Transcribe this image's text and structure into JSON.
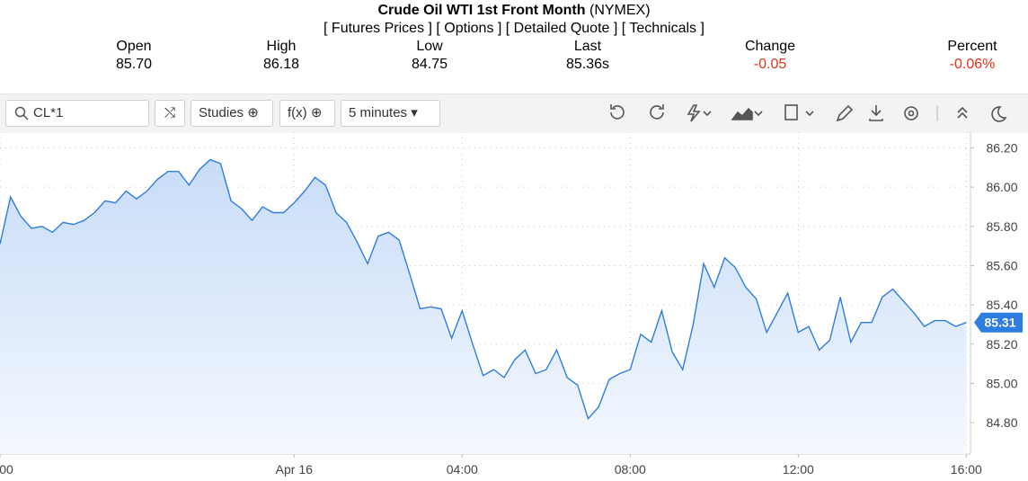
{
  "header": {
    "title": "Crude Oil WTI 1st Front Month",
    "exchange": "(NYMEX)",
    "links": [
      "[ Futures Prices ]",
      "[ Options ]",
      "[ Detailed Quote ]",
      "[ Technicals ]"
    ]
  },
  "quote": [
    {
      "label": "Open",
      "value": "85.70"
    },
    {
      "label": "High",
      "value": "86.18"
    },
    {
      "label": "Low",
      "value": "84.75"
    },
    {
      "label": "Last",
      "value": "85.36s"
    },
    {
      "label": "Change",
      "value": "-0.05"
    },
    {
      "label": "Percent",
      "value": "-0.06%"
    }
  ],
  "toolbar": {
    "symbol": "CL*1",
    "studies": "Studies",
    "fx": "f(x)",
    "interval": "5 minutes"
  },
  "chart_data": {
    "type": "area",
    "x": [
      -7,
      -6.75,
      -6.5,
      -6.25,
      -6,
      -5.75,
      -5.5,
      -5.25,
      -5,
      -4.75,
      -4.5,
      -4.25,
      -4,
      -3.75,
      -3.5,
      -3.25,
      -3,
      -2.75,
      -2.5,
      -2.25,
      -2,
      -1.75,
      -1.5,
      -1.25,
      -1,
      -0.75,
      -0.5,
      -0.25,
      0,
      0.25,
      0.5,
      0.75,
      1,
      1.25,
      1.5,
      1.75,
      2,
      2.25,
      2.5,
      2.75,
      3,
      3.25,
      3.5,
      3.75,
      4,
      4.25,
      4.5,
      4.75,
      5,
      5.25,
      5.5,
      5.75,
      6,
      6.25,
      6.5,
      6.75,
      7,
      7.25,
      7.5,
      7.75,
      8,
      8.25,
      8.5,
      8.75,
      9,
      9.25,
      9.5,
      9.75,
      10,
      10.25,
      10.5,
      10.75,
      11,
      11.25,
      11.5,
      11.75,
      12,
      12.25,
      12.5,
      12.75,
      13,
      13.25,
      13.5,
      13.75,
      14,
      14.25,
      14.5,
      14.75,
      15,
      15.25,
      15.5,
      15.75,
      16
    ],
    "values": [
      85.71,
      85.95,
      85.85,
      85.79,
      85.8,
      85.77,
      85.82,
      85.81,
      85.83,
      85.87,
      85.93,
      85.92,
      85.98,
      85.94,
      85.98,
      86.04,
      86.08,
      86.08,
      86.01,
      86.09,
      86.14,
      86.12,
      85.93,
      85.89,
      85.83,
      85.9,
      85.87,
      85.87,
      85.92,
      85.98,
      86.05,
      86.01,
      85.87,
      85.82,
      85.72,
      85.61,
      85.75,
      85.77,
      85.73,
      85.56,
      85.38,
      85.39,
      85.38,
      85.23,
      85.37,
      85.2,
      85.04,
      85.07,
      85.03,
      85.12,
      85.17,
      85.05,
      85.07,
      85.17,
      85.03,
      84.99,
      84.82,
      84.88,
      85.02,
      85.05,
      85.07,
      85.25,
      85.21,
      85.37,
      85.16,
      85.07,
      85.3,
      85.61,
      85.49,
      85.64,
      85.59,
      85.49,
      85.43,
      85.26,
      85.36,
      85.46,
      85.26,
      85.29,
      85.17,
      85.22,
      85.44,
      85.21,
      85.31,
      85.31,
      85.44,
      85.48,
      85.42,
      85.36,
      85.29,
      85.32,
      85.32,
      85.29,
      85.31
    ],
    "color": "#2e7de0",
    "last_value": 85.31,
    "xlim": [
      -7,
      16.1
    ],
    "xticks": [
      {
        "value": -7,
        "label": "00"
      },
      {
        "value": 0,
        "label": "Apr 16"
      },
      {
        "value": 4,
        "label": "04:00"
      },
      {
        "value": 8,
        "label": "08:00"
      },
      {
        "value": 12,
        "label": "12:00"
      },
      {
        "value": 16,
        "label": "16:00"
      }
    ],
    "ylim": [
      84.64,
      86.28
    ],
    "yticks": [
      {
        "value": 84.8,
        "label": "84.80"
      },
      {
        "value": 85,
        "label": "85.00"
      },
      {
        "value": 85.2,
        "label": "85.20"
      },
      {
        "value": 85.4,
        "label": "85.40"
      },
      {
        "value": 85.6,
        "label": "85.60"
      },
      {
        "value": 85.8,
        "label": "85.80"
      },
      {
        "value": 86,
        "label": "86.00"
      },
      {
        "value": 86.2,
        "label": "86.20"
      }
    ],
    "grid": true
  }
}
